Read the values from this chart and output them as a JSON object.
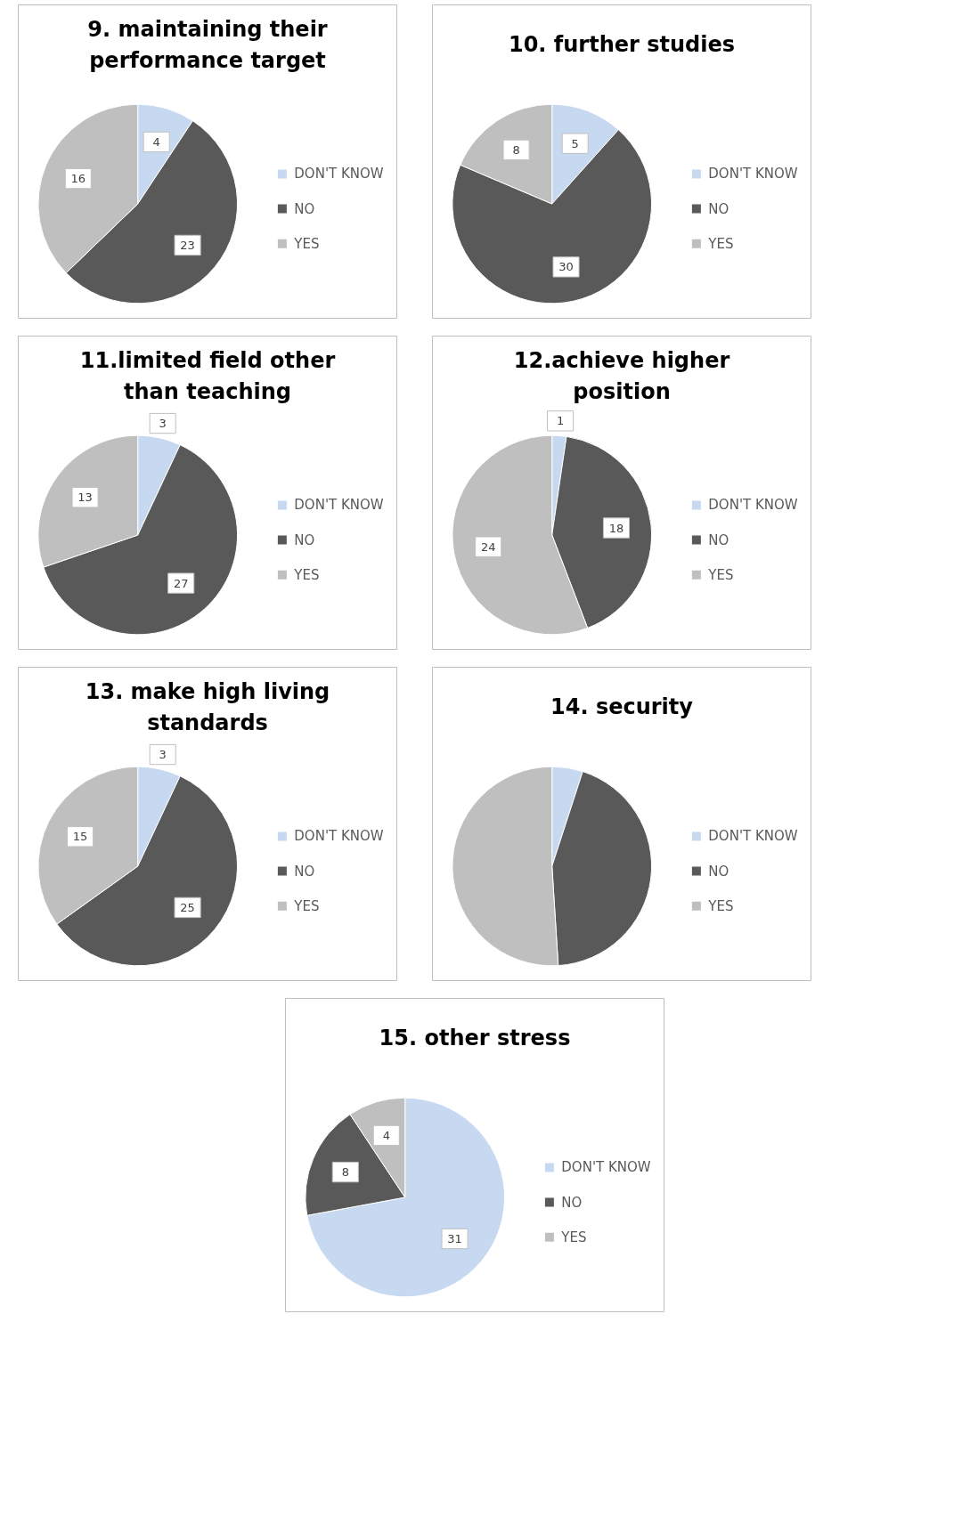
{
  "chart_data": [
    {
      "type": "pie",
      "title": "9. maintaining their performance target",
      "categories": [
        "DON'T KNOW",
        "NO",
        "YES"
      ],
      "values": [
        4,
        23,
        16
      ],
      "colors": [
        "#c6d9f1",
        "#595959",
        "#bfbfbf"
      ],
      "data_labels": true,
      "legend": "right"
    },
    {
      "type": "pie",
      "title": "10. further studies",
      "categories": [
        "DON'T KNOW",
        "NO",
        "YES"
      ],
      "values": [
        5,
        30,
        8
      ],
      "colors": [
        "#c6d9f1",
        "#595959",
        "#bfbfbf"
      ],
      "data_labels": true,
      "legend": "right"
    },
    {
      "type": "pie",
      "title": "11.limited field other than teaching",
      "categories": [
        "DON'T KNOW",
        "NO",
        "YES"
      ],
      "values": [
        3,
        27,
        13
      ],
      "colors": [
        "#c6d9f1",
        "#595959",
        "#bfbfbf"
      ],
      "data_labels": true,
      "legend": "right"
    },
    {
      "type": "pie",
      "title": "12.achieve higher position",
      "categories": [
        "DON'T KNOW",
        "NO",
        "YES"
      ],
      "values": [
        1,
        18,
        24
      ],
      "colors": [
        "#c6d9f1",
        "#595959",
        "#bfbfbf"
      ],
      "data_labels": true,
      "legend": "right"
    },
    {
      "type": "pie",
      "title": "13. make high living standards",
      "categories": [
        "DON'T KNOW",
        "NO",
        "YES"
      ],
      "values": [
        3,
        25,
        15
      ],
      "colors": [
        "#c6d9f1",
        "#595959",
        "#bfbfbf"
      ],
      "data_labels": true,
      "legend": "right"
    },
    {
      "type": "pie",
      "title": "14. security",
      "categories": [
        "DON'T KNOW",
        "NO",
        "YES"
      ],
      "values": [
        5,
        44,
        51
      ],
      "colors": [
        "#c6d9f1",
        "#595959",
        "#bfbfbf"
      ],
      "legend": "right"
    },
    {
      "type": "pie",
      "title": "15. other stress",
      "categories": [
        "DON'T KNOW",
        "NO",
        "YES"
      ],
      "values": [
        31,
        8,
        4
      ],
      "colors": [
        "#c6d9f1",
        "#595959",
        "#bfbfbf"
      ],
      "data_labels": true,
      "legend": "right"
    }
  ]
}
